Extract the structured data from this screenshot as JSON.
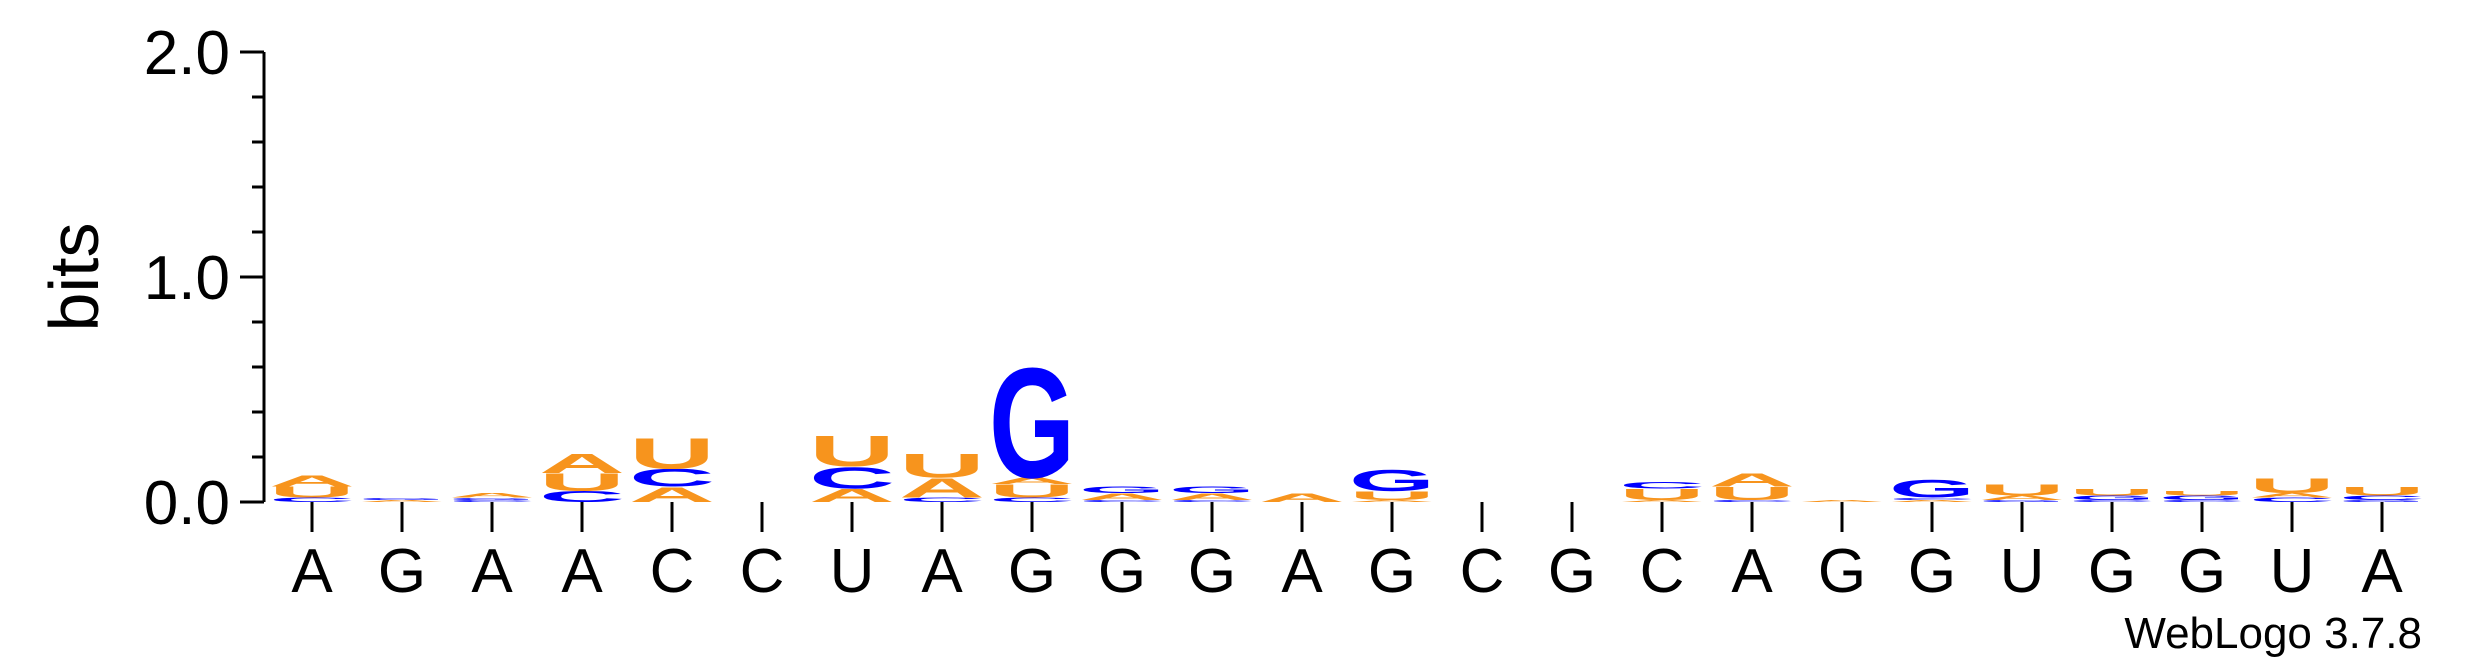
{
  "chart_data": {
    "type": "sequence-logo",
    "ylabel": "bits",
    "ylim": [
      0,
      2.0
    ],
    "yticks": [
      "0.0",
      "1.0",
      "2.0"
    ],
    "credit": "WebLogo 3.7.8",
    "colors": {
      "A": "#f7941d",
      "U": "#f7941d",
      "C": "#0000ff",
      "G": "#0000ff"
    },
    "positions": [
      {
        "label": "A",
        "stack": [
          [
            "C",
            0.02
          ],
          [
            "U",
            0.05
          ],
          [
            "A",
            0.05
          ]
        ]
      },
      {
        "label": "G",
        "stack": [
          [
            "A",
            0.01
          ],
          [
            "G",
            0.01
          ]
        ]
      },
      {
        "label": "A",
        "stack": [
          [
            "C",
            0.01
          ],
          [
            "G",
            0.01
          ],
          [
            "A",
            0.02
          ]
        ]
      },
      {
        "label": "A",
        "stack": [
          [
            "C",
            0.05
          ],
          [
            "U",
            0.08
          ],
          [
            "A",
            0.09
          ]
        ]
      },
      {
        "label": "C",
        "stack": [
          [
            "A",
            0.07
          ],
          [
            "C",
            0.08
          ],
          [
            "U",
            0.14
          ]
        ]
      },
      {
        "label": "C",
        "stack": []
      },
      {
        "label": "U",
        "stack": [
          [
            "A",
            0.06
          ],
          [
            "C",
            0.1
          ],
          [
            "U",
            0.14
          ]
        ]
      },
      {
        "label": "A",
        "stack": [
          [
            "C",
            0.02
          ],
          [
            "A",
            0.09
          ],
          [
            "U",
            0.11
          ]
        ]
      },
      {
        "label": "G",
        "stack": [
          [
            "C",
            0.02
          ],
          [
            "U",
            0.06
          ],
          [
            "A",
            0.03
          ],
          [
            "G",
            0.51
          ]
        ]
      },
      {
        "label": "G",
        "stack": [
          [
            "C",
            0.01
          ],
          [
            "A",
            0.03
          ],
          [
            "G",
            0.03
          ]
        ]
      },
      {
        "label": "G",
        "stack": [
          [
            "C",
            0.01
          ],
          [
            "A",
            0.03
          ],
          [
            "G",
            0.03
          ]
        ]
      },
      {
        "label": "A",
        "stack": [
          [
            "A",
            0.04
          ]
        ]
      },
      {
        "label": "G",
        "stack": [
          [
            "A",
            0.01
          ],
          [
            "U",
            0.04
          ],
          [
            "G",
            0.1
          ]
        ]
      },
      {
        "label": "C",
        "stack": []
      },
      {
        "label": "G",
        "stack": []
      },
      {
        "label": "C",
        "stack": [
          [
            "A",
            0.01
          ],
          [
            "U",
            0.05
          ],
          [
            "C",
            0.03
          ]
        ]
      },
      {
        "label": "A",
        "stack": [
          [
            "C",
            0.01
          ],
          [
            "U",
            0.06
          ],
          [
            "A",
            0.06
          ]
        ]
      },
      {
        "label": "G",
        "stack": [
          [
            "A",
            0.01
          ]
        ]
      },
      {
        "label": "G",
        "stack": [
          [
            "A",
            0.01
          ],
          [
            "C",
            0.01
          ],
          [
            "G",
            0.08
          ]
        ]
      },
      {
        "label": "U",
        "stack": [
          [
            "G",
            0.01
          ],
          [
            "A",
            0.02
          ],
          [
            "U",
            0.05
          ]
        ]
      },
      {
        "label": "G",
        "stack": [
          [
            "C",
            0.01
          ],
          [
            "G",
            0.02
          ],
          [
            "U",
            0.03
          ]
        ]
      },
      {
        "label": "G",
        "stack": [
          [
            "C",
            0.01
          ],
          [
            "G",
            0.02
          ],
          [
            "U",
            0.02
          ]
        ]
      },
      {
        "label": "U",
        "stack": [
          [
            "C",
            0.02
          ],
          [
            "A",
            0.02
          ],
          [
            "U",
            0.07
          ]
        ]
      },
      {
        "label": "A",
        "stack": [
          [
            "G",
            0.01
          ],
          [
            "C",
            0.02
          ],
          [
            "U",
            0.04
          ]
        ]
      }
    ]
  }
}
